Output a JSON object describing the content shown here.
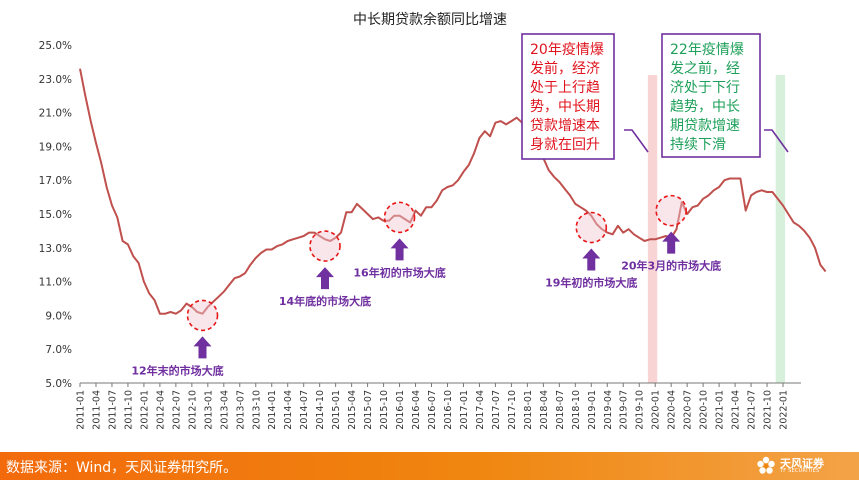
{
  "chart_data": {
    "type": "line",
    "title": "中长期贷款余额同比增速",
    "ylim": [
      5.0,
      25.0
    ],
    "y_ticks": [
      "25.0%",
      "23.0%",
      "21.0%",
      "19.0%",
      "17.0%",
      "15.0%",
      "13.0%",
      "11.0%",
      "9.0%",
      "7.0%",
      "5.0%"
    ],
    "x_labels": [
      "2011-01",
      "2011-04",
      "2011-07",
      "2011-10",
      "2012-01",
      "2012-04",
      "2012-07",
      "2012-10",
      "2013-01",
      "2013-04",
      "2013-07",
      "2013-10",
      "2014-01",
      "2014-04",
      "2014-07",
      "2014-10",
      "2015-01",
      "2015-04",
      "2015-07",
      "2015-10",
      "2016-01",
      "2016-04",
      "2016-07",
      "2016-10",
      "2017-01",
      "2017-04",
      "2017-07",
      "2017-10",
      "2018-01",
      "2018-04",
      "2018-07",
      "2018-10",
      "2019-01",
      "2019-04",
      "2019-07",
      "2019-10",
      "2020-01",
      "2020-04",
      "2020-07",
      "2020-10",
      "2021-01",
      "2021-04",
      "2021-07",
      "2021-10",
      "2022-01"
    ],
    "series": [
      {
        "color": "#c0504d",
        "start_month": "2011-01",
        "values": [
          23.6,
          22.0,
          20.5,
          19.2,
          18.0,
          16.6,
          15.5,
          14.8,
          13.4,
          13.2,
          12.5,
          12.1,
          11.0,
          10.3,
          9.9,
          9.1,
          9.1,
          9.2,
          9.1,
          9.3,
          9.7,
          9.5,
          9.2,
          9.1,
          9.5,
          9.8,
          10.1,
          10.4,
          10.8,
          11.2,
          11.3,
          11.5,
          12.0,
          12.4,
          12.7,
          12.9,
          12.9,
          13.1,
          13.2,
          13.4,
          13.5,
          13.6,
          13.7,
          13.9,
          13.9,
          13.7,
          13.5,
          13.4,
          13.6,
          13.9,
          15.1,
          15.1,
          15.6,
          15.3,
          15.0,
          14.7,
          14.8,
          14.6,
          14.6,
          14.9,
          14.9,
          14.7,
          14.5,
          15.2,
          14.9,
          15.4,
          15.4,
          15.8,
          16.4,
          16.6,
          16.7,
          17.0,
          17.5,
          17.9,
          18.6,
          19.5,
          19.9,
          19.6,
          20.4,
          20.5,
          20.3,
          20.5,
          20.7,
          20.4,
          20.3,
          20.1,
          18.9,
          18.3,
          17.6,
          17.2,
          16.9,
          16.5,
          16.1,
          15.6,
          15.4,
          15.2,
          14.9,
          14.4,
          14.1,
          13.9,
          13.8,
          14.3,
          13.9,
          14.1,
          13.8,
          13.6,
          13.4,
          13.5,
          13.5,
          13.6,
          13.7,
          13.6,
          14.1,
          15.7,
          15.0,
          15.4,
          15.5,
          15.9,
          16.1,
          16.4,
          16.6,
          17.0,
          17.1,
          17.1,
          17.1,
          15.2,
          16.1,
          16.3,
          16.4,
          16.3,
          16.3,
          15.9,
          15.5,
          15.0,
          14.5,
          14.3,
          14.0,
          13.6,
          13.0,
          12.0,
          11.6
        ]
      }
    ],
    "highlight_bands": [
      {
        "from": "2019-12",
        "to": "2020-01",
        "color": "#f8d4d4"
      },
      {
        "from": "2021-12",
        "to": "2022-01",
        "color": "#d7f0dc"
      }
    ],
    "annotations": [
      {
        "id": "a12",
        "label": "12年末的市场大底",
        "month": "2012-12",
        "value": 9.0
      },
      {
        "id": "a14",
        "label": "14年底的市场大底",
        "month": "2014-11",
        "value": 13.1
      },
      {
        "id": "a16",
        "label": "16年初的市场大底",
        "month": "2016-01",
        "value": 14.8
      },
      {
        "id": "a19",
        "label": "19年初的市场大底",
        "month": "2019-01",
        "value": 14.2
      },
      {
        "id": "a20",
        "label": "20年3月的市场大底",
        "month": "2020-04",
        "value": 15.2
      }
    ],
    "callouts": [
      {
        "id": "c20",
        "text": [
          "20年疫情爆",
          "发前，经济",
          "处于上行趋",
          "势，中长期",
          "贷款增速本",
          "身就在回升"
        ],
        "color": "#e0141e"
      },
      {
        "id": "c22",
        "text": [
          "22年疫情爆",
          "发之前，经",
          "济处于下行",
          "趋势，中长",
          "期贷款增速",
          "持续下滑"
        ],
        "color": "#1ea05a"
      }
    ],
    "grid": false
  },
  "footer": {
    "source": "数据来源：Wind，天风证券研究所。",
    "brand_name": "天风证券",
    "brand_sub": "TF SECURITIES"
  }
}
